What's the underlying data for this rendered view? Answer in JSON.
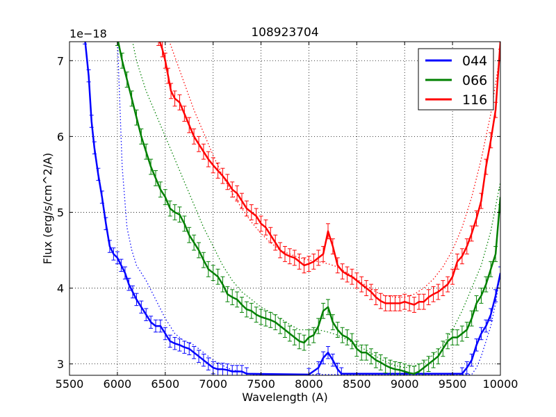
{
  "chart_data": {
    "type": "line",
    "title": "108923704",
    "xlabel": "Wavelength (A)",
    "ylabel": "Flux (erg/s/cm^2/A)",
    "y_offset_label": "1e−18",
    "xlim": [
      5500,
      10000
    ],
    "ylim": [
      2.85,
      7.25
    ],
    "xticks": [
      5500,
      6000,
      6500,
      7000,
      7500,
      8000,
      8500,
      9000,
      9500,
      10000
    ],
    "yticks": [
      3,
      4,
      5,
      6,
      7
    ],
    "grid": true,
    "legend_position": "top-right",
    "series": [
      {
        "name": "044",
        "color": "#0000ff",
        "points": [
          [
            5660,
            7.3
          ],
          [
            5700,
            6.8
          ],
          [
            5730,
            6.2
          ],
          [
            5760,
            5.85
          ],
          [
            5800,
            5.5
          ],
          [
            5840,
            5.2
          ],
          [
            5880,
            4.85
          ],
          [
            5920,
            4.55
          ],
          [
            5960,
            4.45
          ],
          [
            6000,
            4.4
          ],
          [
            6040,
            4.3
          ],
          [
            6080,
            4.2
          ],
          [
            6120,
            4.05
          ],
          [
            6160,
            3.95
          ],
          [
            6200,
            3.85
          ],
          [
            6250,
            3.75
          ],
          [
            6300,
            3.65
          ],
          [
            6350,
            3.55
          ],
          [
            6400,
            3.5
          ],
          [
            6450,
            3.5
          ],
          [
            6500,
            3.4
          ],
          [
            6550,
            3.3
          ],
          [
            6600,
            3.27
          ],
          [
            6650,
            3.25
          ],
          [
            6700,
            3.22
          ],
          [
            6750,
            3.2
          ],
          [
            6800,
            3.15
          ],
          [
            6850,
            3.1
          ],
          [
            6900,
            3.05
          ],
          [
            6950,
            3.0
          ],
          [
            7000,
            2.95
          ],
          [
            7050,
            2.93
          ],
          [
            7100,
            2.93
          ],
          [
            7150,
            2.92
          ],
          [
            7200,
            2.9
          ],
          [
            7250,
            2.9
          ],
          [
            7300,
            2.9
          ],
          [
            7350,
            2.87
          ],
          [
            8000,
            2.86
          ],
          [
            8100,
            2.95
          ],
          [
            8150,
            3.08
          ],
          [
            8200,
            3.15
          ],
          [
            8250,
            3.05
          ],
          [
            8300,
            2.93
          ],
          [
            8340,
            2.87
          ],
          [
            9600,
            2.87
          ],
          [
            9650,
            2.95
          ],
          [
            9700,
            3.05
          ],
          [
            9750,
            3.25
          ],
          [
            9800,
            3.4
          ],
          [
            9850,
            3.5
          ],
          [
            9900,
            3.65
          ],
          [
            9950,
            3.9
          ],
          [
            10000,
            4.2
          ]
        ],
        "model": [
          [
            6000,
            7.3
          ],
          [
            6050,
            5.6
          ],
          [
            6100,
            4.8
          ],
          [
            6150,
            4.5
          ],
          [
            6200,
            4.3
          ],
          [
            6300,
            4.1
          ],
          [
            6400,
            3.85
          ],
          [
            6500,
            3.6
          ],
          [
            6600,
            3.4
          ],
          [
            6700,
            3.3
          ],
          [
            6800,
            3.25
          ],
          [
            6900,
            3.15
          ],
          [
            7000,
            3.05
          ],
          [
            7100,
            2.98
          ],
          [
            7200,
            2.92
          ],
          [
            7300,
            2.9
          ],
          [
            7400,
            2.86
          ],
          [
            9700,
            2.86
          ],
          [
            9750,
            2.95
          ],
          [
            9800,
            3.1
          ],
          [
            9850,
            3.3
          ],
          [
            9900,
            3.5
          ],
          [
            9950,
            3.8
          ],
          [
            10000,
            4.2
          ]
        ],
        "err": 0.08
      },
      {
        "name": "066",
        "color": "#008000",
        "points": [
          [
            6000,
            7.3
          ],
          [
            6050,
            7.0
          ],
          [
            6100,
            6.75
          ],
          [
            6150,
            6.5
          ],
          [
            6200,
            6.25
          ],
          [
            6250,
            6.0
          ],
          [
            6300,
            5.8
          ],
          [
            6350,
            5.6
          ],
          [
            6400,
            5.45
          ],
          [
            6450,
            5.3
          ],
          [
            6500,
            5.2
          ],
          [
            6550,
            5.05
          ],
          [
            6600,
            5.0
          ],
          [
            6650,
            4.97
          ],
          [
            6700,
            4.85
          ],
          [
            6750,
            4.7
          ],
          [
            6800,
            4.6
          ],
          [
            6850,
            4.5
          ],
          [
            6900,
            4.37
          ],
          [
            6950,
            4.25
          ],
          [
            7000,
            4.2
          ],
          [
            7050,
            4.15
          ],
          [
            7100,
            4.05
          ],
          [
            7150,
            3.92
          ],
          [
            7200,
            3.88
          ],
          [
            7250,
            3.85
          ],
          [
            7300,
            3.78
          ],
          [
            7350,
            3.72
          ],
          [
            7400,
            3.7
          ],
          [
            7450,
            3.65
          ],
          [
            7500,
            3.62
          ],
          [
            7550,
            3.6
          ],
          [
            7600,
            3.58
          ],
          [
            7650,
            3.55
          ],
          [
            7700,
            3.5
          ],
          [
            7750,
            3.45
          ],
          [
            7800,
            3.4
          ],
          [
            7850,
            3.35
          ],
          [
            7900,
            3.3
          ],
          [
            7950,
            3.28
          ],
          [
            8000,
            3.35
          ],
          [
            8050,
            3.38
          ],
          [
            8100,
            3.5
          ],
          [
            8150,
            3.7
          ],
          [
            8200,
            3.75
          ],
          [
            8250,
            3.55
          ],
          [
            8300,
            3.45
          ],
          [
            8350,
            3.38
          ],
          [
            8400,
            3.35
          ],
          [
            8450,
            3.3
          ],
          [
            8500,
            3.2
          ],
          [
            8550,
            3.15
          ],
          [
            8600,
            3.15
          ],
          [
            8650,
            3.1
          ],
          [
            8700,
            3.05
          ],
          [
            8750,
            3.02
          ],
          [
            8800,
            2.98
          ],
          [
            8850,
            2.95
          ],
          [
            8900,
            2.93
          ],
          [
            8950,
            2.92
          ],
          [
            9000,
            2.9
          ],
          [
            9050,
            2.88
          ],
          [
            9100,
            2.87
          ],
          [
            9150,
            2.9
          ],
          [
            9200,
            2.95
          ],
          [
            9250,
            3.0
          ],
          [
            9300,
            3.05
          ],
          [
            9350,
            3.1
          ],
          [
            9400,
            3.2
          ],
          [
            9450,
            3.3
          ],
          [
            9500,
            3.35
          ],
          [
            9550,
            3.35
          ],
          [
            9600,
            3.4
          ],
          [
            9650,
            3.45
          ],
          [
            9700,
            3.6
          ],
          [
            9750,
            3.8
          ],
          [
            9800,
            3.9
          ],
          [
            9850,
            4.05
          ],
          [
            9900,
            4.25
          ],
          [
            9950,
            4.45
          ],
          [
            10000,
            5.2
          ]
        ],
        "model": [
          [
            6150,
            7.3
          ],
          [
            6200,
            7.0
          ],
          [
            6300,
            6.6
          ],
          [
            6400,
            6.3
          ],
          [
            6500,
            6.0
          ],
          [
            6600,
            5.7
          ],
          [
            6700,
            5.4
          ],
          [
            6800,
            5.1
          ],
          [
            6900,
            4.8
          ],
          [
            7000,
            4.55
          ],
          [
            7100,
            4.3
          ],
          [
            7200,
            4.1
          ],
          [
            7300,
            3.95
          ],
          [
            7400,
            3.85
          ],
          [
            7500,
            3.75
          ],
          [
            7600,
            3.68
          ],
          [
            7700,
            3.6
          ],
          [
            7800,
            3.52
          ],
          [
            7900,
            3.45
          ],
          [
            8000,
            3.45
          ],
          [
            8100,
            3.45
          ],
          [
            8200,
            3.42
          ],
          [
            8300,
            3.38
          ],
          [
            8400,
            3.32
          ],
          [
            8500,
            3.25
          ],
          [
            8600,
            3.18
          ],
          [
            8700,
            3.1
          ],
          [
            8800,
            3.03
          ],
          [
            8900,
            2.98
          ],
          [
            9000,
            2.95
          ],
          [
            9100,
            2.97
          ],
          [
            9200,
            3.02
          ],
          [
            9300,
            3.12
          ],
          [
            9400,
            3.25
          ],
          [
            9500,
            3.45
          ],
          [
            9600,
            3.7
          ],
          [
            9700,
            4.0
          ],
          [
            9800,
            4.3
          ],
          [
            9900,
            4.75
          ],
          [
            10000,
            5.4
          ]
        ],
        "err": 0.1
      },
      {
        "name": "116",
        "color": "#ff0000",
        "points": [
          [
            6430,
            7.3
          ],
          [
            6470,
            7.15
          ],
          [
            6500,
            7.0
          ],
          [
            6530,
            6.8
          ],
          [
            6560,
            6.6
          ],
          [
            6600,
            6.5
          ],
          [
            6650,
            6.45
          ],
          [
            6700,
            6.3
          ],
          [
            6750,
            6.15
          ],
          [
            6800,
            6.0
          ],
          [
            6850,
            5.9
          ],
          [
            6900,
            5.8
          ],
          [
            6950,
            5.7
          ],
          [
            7000,
            5.62
          ],
          [
            7050,
            5.55
          ],
          [
            7100,
            5.48
          ],
          [
            7150,
            5.4
          ],
          [
            7200,
            5.3
          ],
          [
            7250,
            5.25
          ],
          [
            7300,
            5.15
          ],
          [
            7350,
            5.05
          ],
          [
            7400,
            5.0
          ],
          [
            7450,
            4.95
          ],
          [
            7500,
            4.85
          ],
          [
            7550,
            4.8
          ],
          [
            7600,
            4.7
          ],
          [
            7650,
            4.6
          ],
          [
            7700,
            4.5
          ],
          [
            7750,
            4.45
          ],
          [
            7800,
            4.42
          ],
          [
            7850,
            4.4
          ],
          [
            7900,
            4.35
          ],
          [
            7950,
            4.3
          ],
          [
            8000,
            4.32
          ],
          [
            8050,
            4.35
          ],
          [
            8100,
            4.4
          ],
          [
            8150,
            4.45
          ],
          [
            8200,
            4.75
          ],
          [
            8250,
            4.55
          ],
          [
            8300,
            4.3
          ],
          [
            8350,
            4.22
          ],
          [
            8400,
            4.18
          ],
          [
            8450,
            4.15
          ],
          [
            8500,
            4.1
          ],
          [
            8550,
            4.05
          ],
          [
            8600,
            4.0
          ],
          [
            8650,
            3.95
          ],
          [
            8700,
            3.88
          ],
          [
            8750,
            3.83
          ],
          [
            8800,
            3.8
          ],
          [
            8850,
            3.8
          ],
          [
            8900,
            3.8
          ],
          [
            8950,
            3.8
          ],
          [
            9000,
            3.82
          ],
          [
            9050,
            3.8
          ],
          [
            9100,
            3.78
          ],
          [
            9150,
            3.82
          ],
          [
            9200,
            3.82
          ],
          [
            9250,
            3.88
          ],
          [
            9300,
            3.92
          ],
          [
            9350,
            3.95
          ],
          [
            9400,
            4.0
          ],
          [
            9450,
            4.05
          ],
          [
            9500,
            4.15
          ],
          [
            9550,
            4.35
          ],
          [
            9600,
            4.42
          ],
          [
            9650,
            4.55
          ],
          [
            9700,
            4.72
          ],
          [
            9750,
            4.92
          ],
          [
            9800,
            5.15
          ],
          [
            9850,
            5.6
          ],
          [
            9900,
            5.95
          ],
          [
            9950,
            6.35
          ],
          [
            10000,
            7.25
          ]
        ],
        "model": [
          [
            6530,
            7.3
          ],
          [
            6600,
            7.05
          ],
          [
            6700,
            6.7
          ],
          [
            6800,
            6.35
          ],
          [
            6900,
            6.05
          ],
          [
            7000,
            5.75
          ],
          [
            7100,
            5.48
          ],
          [
            7200,
            5.25
          ],
          [
            7300,
            5.05
          ],
          [
            7400,
            4.87
          ],
          [
            7500,
            4.72
          ],
          [
            7600,
            4.6
          ],
          [
            7700,
            4.5
          ],
          [
            7800,
            4.45
          ],
          [
            7900,
            4.4
          ],
          [
            8000,
            4.37
          ],
          [
            8100,
            4.35
          ],
          [
            8200,
            4.32
          ],
          [
            8300,
            4.28
          ],
          [
            8400,
            4.2
          ],
          [
            8500,
            4.12
          ],
          [
            8600,
            4.03
          ],
          [
            8700,
            3.95
          ],
          [
            8800,
            3.9
          ],
          [
            8900,
            3.88
          ],
          [
            9000,
            3.88
          ],
          [
            9100,
            3.92
          ],
          [
            9200,
            4.0
          ],
          [
            9300,
            4.12
          ],
          [
            9400,
            4.28
          ],
          [
            9500,
            4.5
          ],
          [
            9600,
            4.8
          ],
          [
            9700,
            5.2
          ],
          [
            9800,
            5.7
          ],
          [
            9900,
            6.3
          ],
          [
            10000,
            7.1
          ]
        ],
        "err": 0.1
      }
    ]
  }
}
